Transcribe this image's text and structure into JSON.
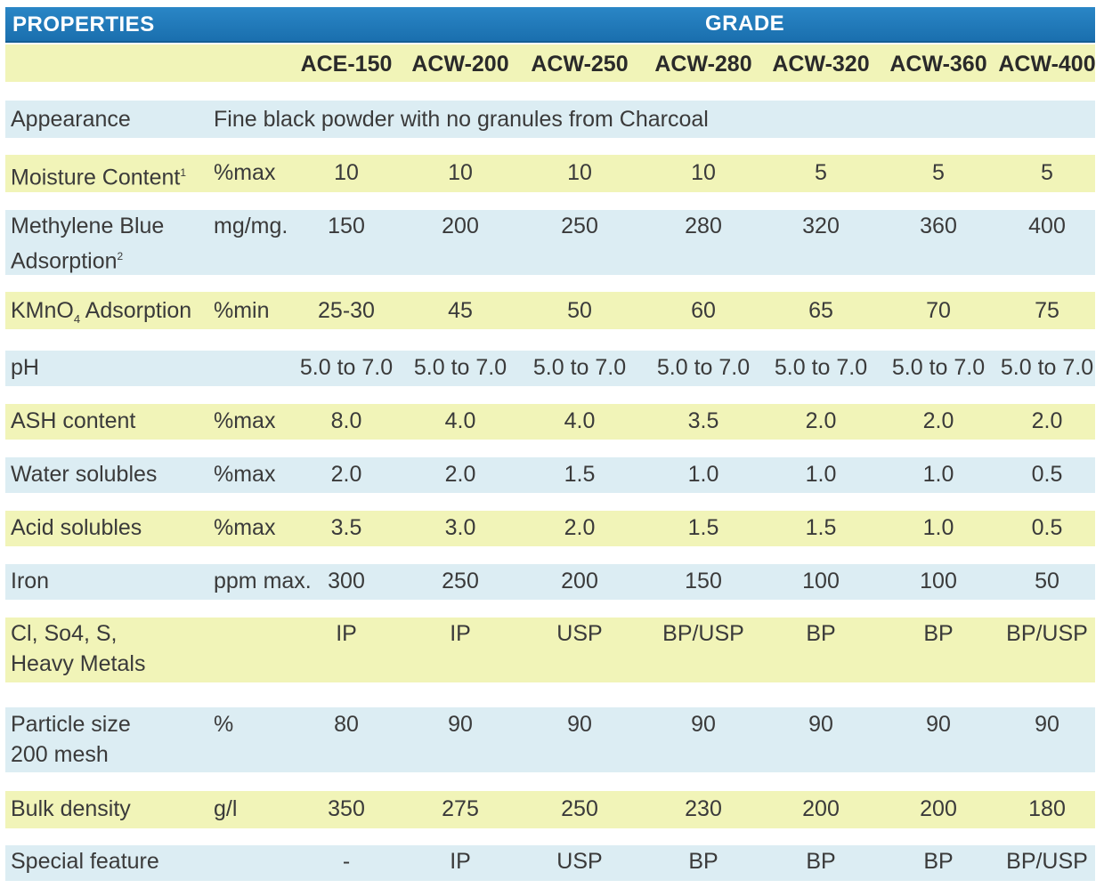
{
  "header": {
    "properties": "PROPERTIES",
    "grade": "GRADE"
  },
  "grades": [
    "ACE-150",
    "ACW-200",
    "ACW-250",
    "ACW-280",
    "ACW-320",
    "ACW-360",
    "ACW-400"
  ],
  "rows": [
    {
      "property": "Appearance",
      "unit": "Fine black powder with no granules from Charcoal",
      "values": []
    },
    {
      "property": "Moisture Content",
      "sup": "1",
      "unit": "%max",
      "values": [
        "10",
        "10",
        "10",
        "10",
        "5",
        "5",
        "5"
      ]
    },
    {
      "property": "Methylene Blue",
      "property2": "Adsorption",
      "sup": "2",
      "unit": "mg/mg.",
      "values": [
        "150",
        "200",
        "250",
        "280",
        "320",
        "360",
        "400"
      ]
    },
    {
      "property": "KMnO",
      "sub": "4",
      "property_tail": " Adsorption",
      "unit": "%min",
      "values": [
        "25-30",
        "45",
        "50",
        "60",
        "65",
        "70",
        "75"
      ]
    },
    {
      "property": "pH",
      "unit": "",
      "values": [
        "5.0 to 7.0",
        "5.0 to 7.0",
        "5.0 to 7.0",
        "5.0 to 7.0",
        "5.0 to 7.0",
        "5.0 to 7.0",
        "5.0 to 7.0"
      ]
    },
    {
      "property": "ASH content",
      "unit": "%max",
      "values": [
        "8.0",
        "4.0",
        "4.0",
        "3.5",
        "2.0",
        "2.0",
        "2.0"
      ]
    },
    {
      "property": "Water solubles",
      "unit": "%max",
      "values": [
        "2.0",
        "2.0",
        "1.5",
        "1.0",
        "1.0",
        "1.0",
        "0.5"
      ]
    },
    {
      "property": "Acid solubles",
      "unit": "%max",
      "values": [
        "3.5",
        "3.0",
        "2.0",
        "1.5",
        "1.5",
        "1.0",
        "0.5"
      ]
    },
    {
      "property": "Iron",
      "unit": "ppm max.",
      "values": [
        "300",
        "250",
        "200",
        "150",
        "100",
        "100",
        "50"
      ]
    },
    {
      "property": "Cl, So4, S,",
      "property2": "Heavy Metals",
      "unit": "",
      "values": [
        "IP",
        "IP",
        "USP",
        "BP/USP",
        "BP",
        "BP",
        "BP/USP"
      ]
    },
    {
      "property": "Particle size",
      "property2": "200 mesh",
      "unit": "%",
      "values": [
        "80",
        "90",
        "90",
        "90",
        "90",
        "90",
        "90"
      ]
    },
    {
      "property": "Bulk density",
      "unit": "g/l",
      "values": [
        "350",
        "275",
        "250",
        "230",
        "200",
        "200",
        "180"
      ]
    },
    {
      "property": "Special feature",
      "unit": "",
      "values": [
        "-",
        "IP",
        "USP",
        "BP",
        "BP",
        "BP",
        "BP/USP"
      ]
    }
  ]
}
